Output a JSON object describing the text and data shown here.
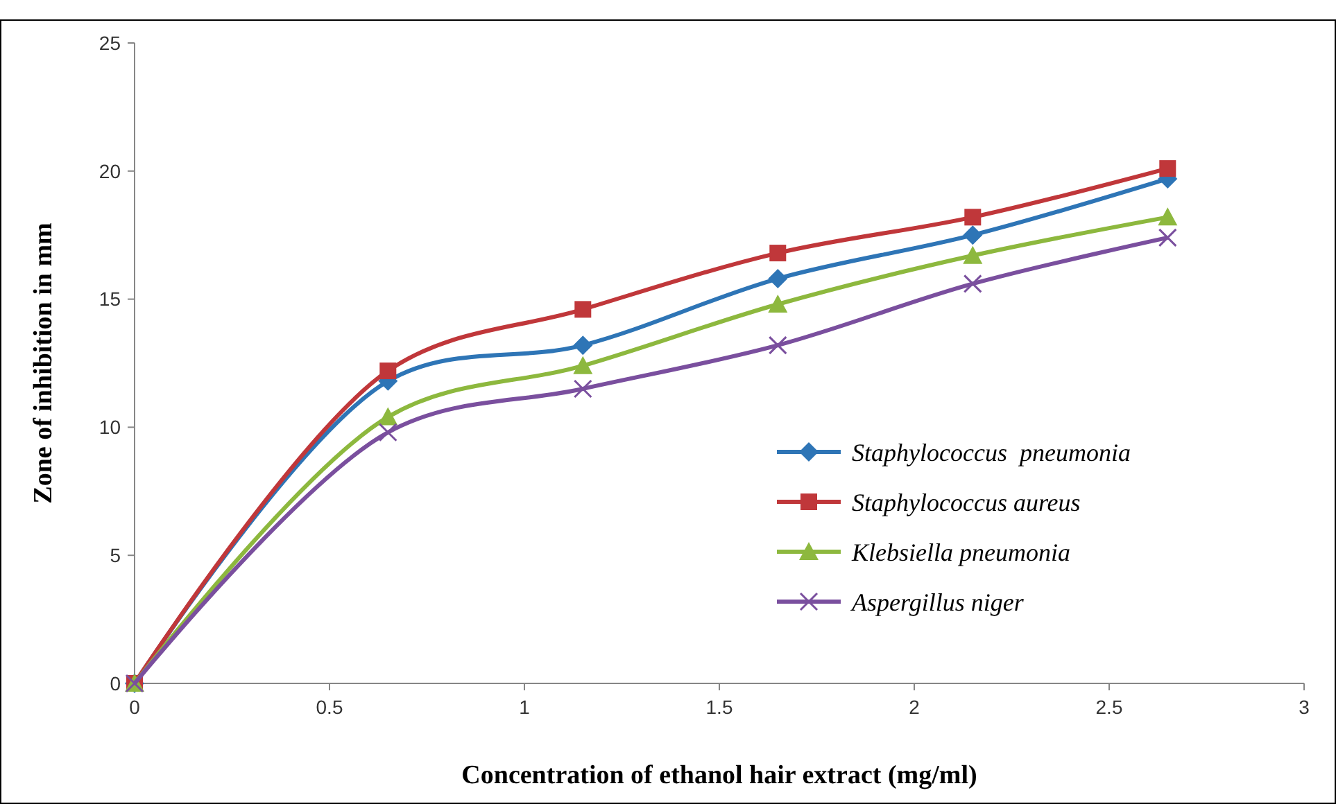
{
  "chart_data": {
    "type": "line",
    "xlabel": "Concentration of ethanol hair extract (mg/ml)",
    "ylabel": "Zone of inhibition in mm",
    "x": [
      0,
      0.65,
      1.15,
      1.65,
      2.15,
      2.65
    ],
    "series": [
      {
        "name": "Staphylococcus  pneumonia",
        "color": "#2e75b6",
        "marker": "diamond",
        "values": [
          0,
          11.8,
          13.2,
          15.8,
          17.5,
          19.7
        ]
      },
      {
        "name": "Staphylococcus aureus",
        "color": "#c0373a",
        "marker": "square",
        "values": [
          0,
          12.2,
          14.6,
          16.8,
          18.2,
          20.1
        ]
      },
      {
        "name": "Klebsiella pneumonia",
        "color": "#8db83e",
        "marker": "triangle",
        "values": [
          0,
          10.4,
          12.4,
          14.8,
          16.7,
          18.2
        ]
      },
      {
        "name": "Aspergillus niger",
        "color": "#7a4f9e",
        "marker": "cross",
        "values": [
          0,
          9.8,
          11.5,
          13.2,
          15.6,
          17.4
        ]
      }
    ],
    "xlim": [
      0,
      3
    ],
    "xticks": [
      0,
      0.5,
      1,
      1.5,
      2,
      2.5,
      3
    ],
    "ylim": [
      0,
      25
    ],
    "yticks": [
      0,
      5,
      10,
      15,
      20,
      25
    ],
    "grid": false,
    "legend": "right",
    "line_style": "solid"
  }
}
